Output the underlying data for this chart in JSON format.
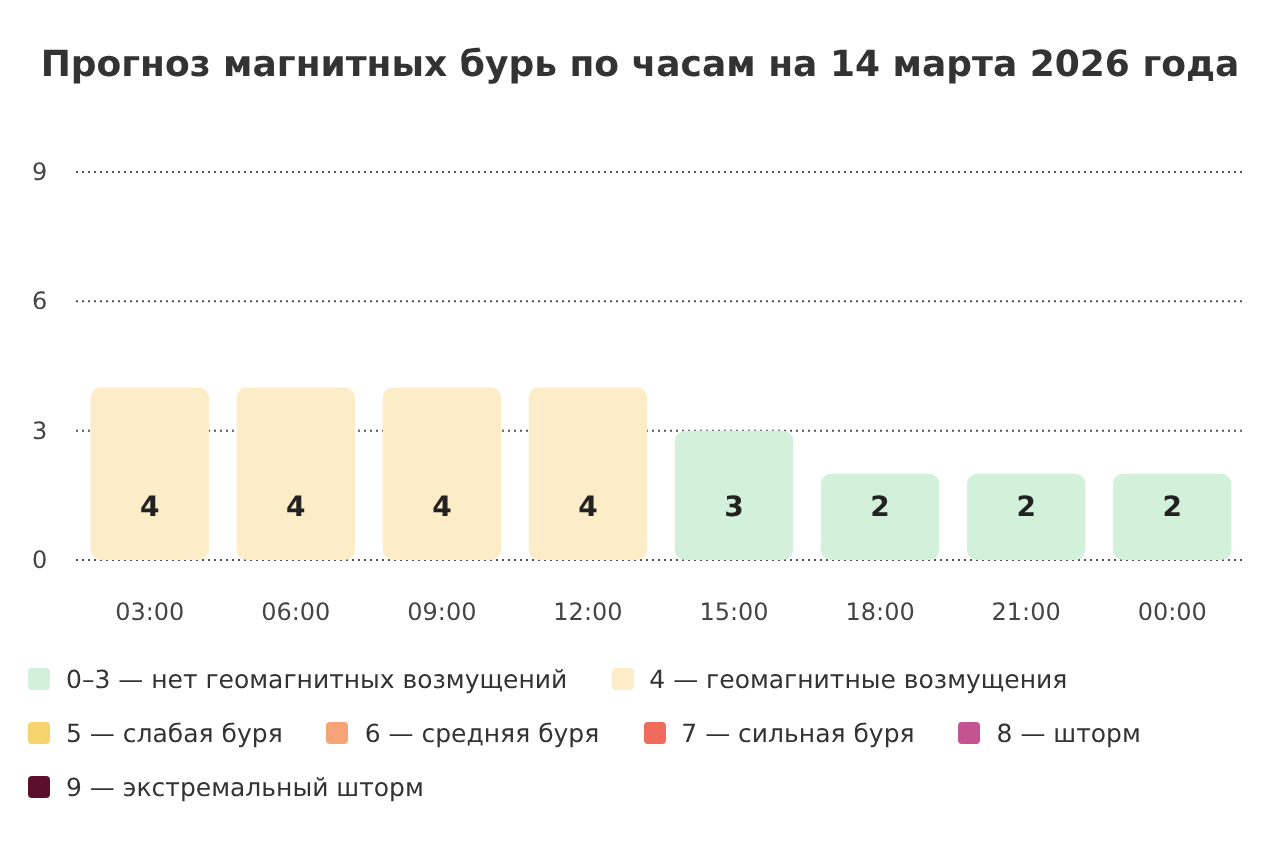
{
  "chart_data": {
    "type": "bar",
    "title": "Прогноз магнитных бурь по часам на 14 марта 2026 года",
    "categories": [
      "03:00",
      "06:00",
      "09:00",
      "12:00",
      "15:00",
      "18:00",
      "21:00",
      "00:00"
    ],
    "series": [
      {
        "name": "0–3 — нет геомагнитных возмущений",
        "color": "#d3f0da",
        "values": [
          null,
          null,
          null,
          null,
          3,
          2,
          2,
          2
        ]
      },
      {
        "name": "4 — геомагнитные возмущения",
        "color": "#fdecc8",
        "values": [
          4,
          4,
          4,
          4,
          null,
          null,
          null,
          null
        ]
      },
      {
        "name": "5 — слабая буря",
        "color": "#f7d36e",
        "values": [
          null,
          null,
          null,
          null,
          null,
          null,
          null,
          null
        ]
      },
      {
        "name": "6 — средняя буря",
        "color": "#f5a477",
        "values": [
          null,
          null,
          null,
          null,
          null,
          null,
          null,
          null
        ]
      },
      {
        "name": "7 — сильная буря",
        "color": "#ef6b5c",
        "values": [
          null,
          null,
          null,
          null,
          null,
          null,
          null,
          null
        ]
      },
      {
        "name": "8 — шторм",
        "color": "#c4538f",
        "values": [
          null,
          null,
          null,
          null,
          null,
          null,
          null,
          null
        ]
      },
      {
        "name": "9 — экстремальный шторм",
        "color": "#5b0f2b",
        "values": [
          null,
          null,
          null,
          null,
          null,
          null,
          null,
          null
        ]
      }
    ],
    "ylim": [
      0,
      9
    ],
    "yticks": [
      0,
      3,
      6,
      9
    ],
    "grid": "y",
    "data_labels": true,
    "legend": "bottom"
  }
}
